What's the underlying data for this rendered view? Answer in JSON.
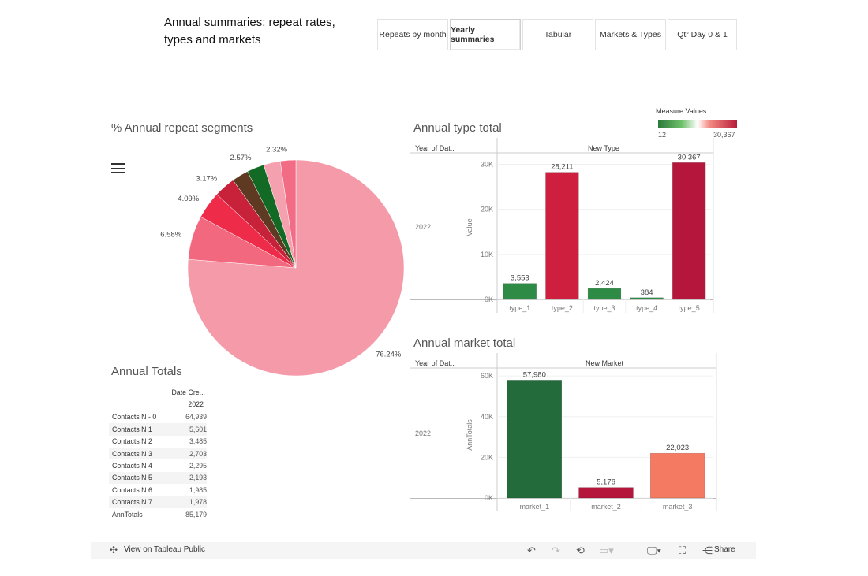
{
  "dashboard": {
    "title": "Annual summaries: repeat rates, types and markets"
  },
  "tabs": [
    {
      "label": "Repeats by month"
    },
    {
      "label": "Yearly summaries"
    },
    {
      "label": "Tabular"
    },
    {
      "label": "Markets & Types"
    },
    {
      "label": "Qtr Day 0 & 1"
    }
  ],
  "pie": {
    "title": "% Annual repeat segments",
    "labels": [
      "76.24%",
      "6.58%",
      "4.09%",
      "3.17%",
      "2.57%",
      "2.32%"
    ]
  },
  "legend": {
    "title": "Measure Values",
    "min": "12",
    "max": "30,367"
  },
  "type_chart": {
    "title": "Annual type total",
    "col_header_left": "Year of Dat..",
    "col_header_right": "New Type",
    "row_label": "2022",
    "axis_label": "Value",
    "ticks": [
      "30K",
      "20K",
      "10K",
      "0K"
    ]
  },
  "market_chart": {
    "title": "Annual market total",
    "col_header_left": "Year of Dat..",
    "col_header_right": "New Market",
    "row_label": "2022",
    "axis_label": "AnnTotals",
    "ticks": [
      "60K",
      "40K",
      "20K",
      "0K"
    ]
  },
  "totals": {
    "title": "Annual Totals",
    "col_header": "Date Cre...",
    "year": "2022",
    "rows": [
      {
        "label": "Contacts N - 0",
        "value": "64,939"
      },
      {
        "label": "Contacts N 1",
        "value": "5,601"
      },
      {
        "label": "Contacts N 2",
        "value": "3,485"
      },
      {
        "label": "Contacts N 3",
        "value": "2,703"
      },
      {
        "label": "Contacts N 4",
        "value": "2,295"
      },
      {
        "label": "Contacts N 5",
        "value": "2,193"
      },
      {
        "label": "Contacts N 6",
        "value": "1,985"
      },
      {
        "label": "Contacts N 7",
        "value": "1,978"
      },
      {
        "label": "AnnTotals",
        "value": "85,179"
      }
    ]
  },
  "footer": {
    "view_label": "View on Tableau Public",
    "share_label": "Share"
  },
  "chart_data": [
    {
      "type": "pie",
      "title": "% Annual repeat segments",
      "slices": [
        {
          "label": "76.24%",
          "value": 76.24,
          "color": "#f49aa8"
        },
        {
          "label": "6.58%",
          "value": 6.58,
          "color": "#f2687e"
        },
        {
          "label": "4.09%",
          "value": 4.09,
          "color": "#ef2b4a"
        },
        {
          "label": "3.17%",
          "value": 3.17,
          "color": "#c8213a"
        },
        {
          "label": "",
          "value": 2.5,
          "color": "#5e3a22"
        },
        {
          "label": "2.57%",
          "value": 2.57,
          "color": "#126a25"
        },
        {
          "label": "",
          "value": 2.5,
          "color": "#f4a0ae"
        },
        {
          "label": "2.32%",
          "value": 2.32,
          "color": "#f36c85"
        }
      ]
    },
    {
      "type": "bar",
      "title": "Annual type total",
      "categories": [
        "type_1",
        "type_2",
        "type_3",
        "type_4",
        "type_5"
      ],
      "values": [
        3553,
        28211,
        2424,
        384,
        30367
      ],
      "value_labels": [
        "3,553",
        "28,211",
        "2,424",
        "384",
        "30,367"
      ],
      "colors": [
        "#2e8b46",
        "#cf1f3e",
        "#2e8b46",
        "#2e8b46",
        "#b5163b"
      ],
      "ylabel": "Value",
      "ylim": [
        0,
        32000
      ]
    },
    {
      "type": "bar",
      "title": "Annual market total",
      "categories": [
        "market_1",
        "market_2",
        "market_3"
      ],
      "values": [
        57980,
        5176,
        22023
      ],
      "value_labels": [
        "57,980",
        "5,176",
        "22,023"
      ],
      "colors": [
        "#236b3a",
        "#b5163b",
        "#f47b61"
      ],
      "ylabel": "AnnTotals",
      "ylim": [
        0,
        62000
      ]
    }
  ]
}
